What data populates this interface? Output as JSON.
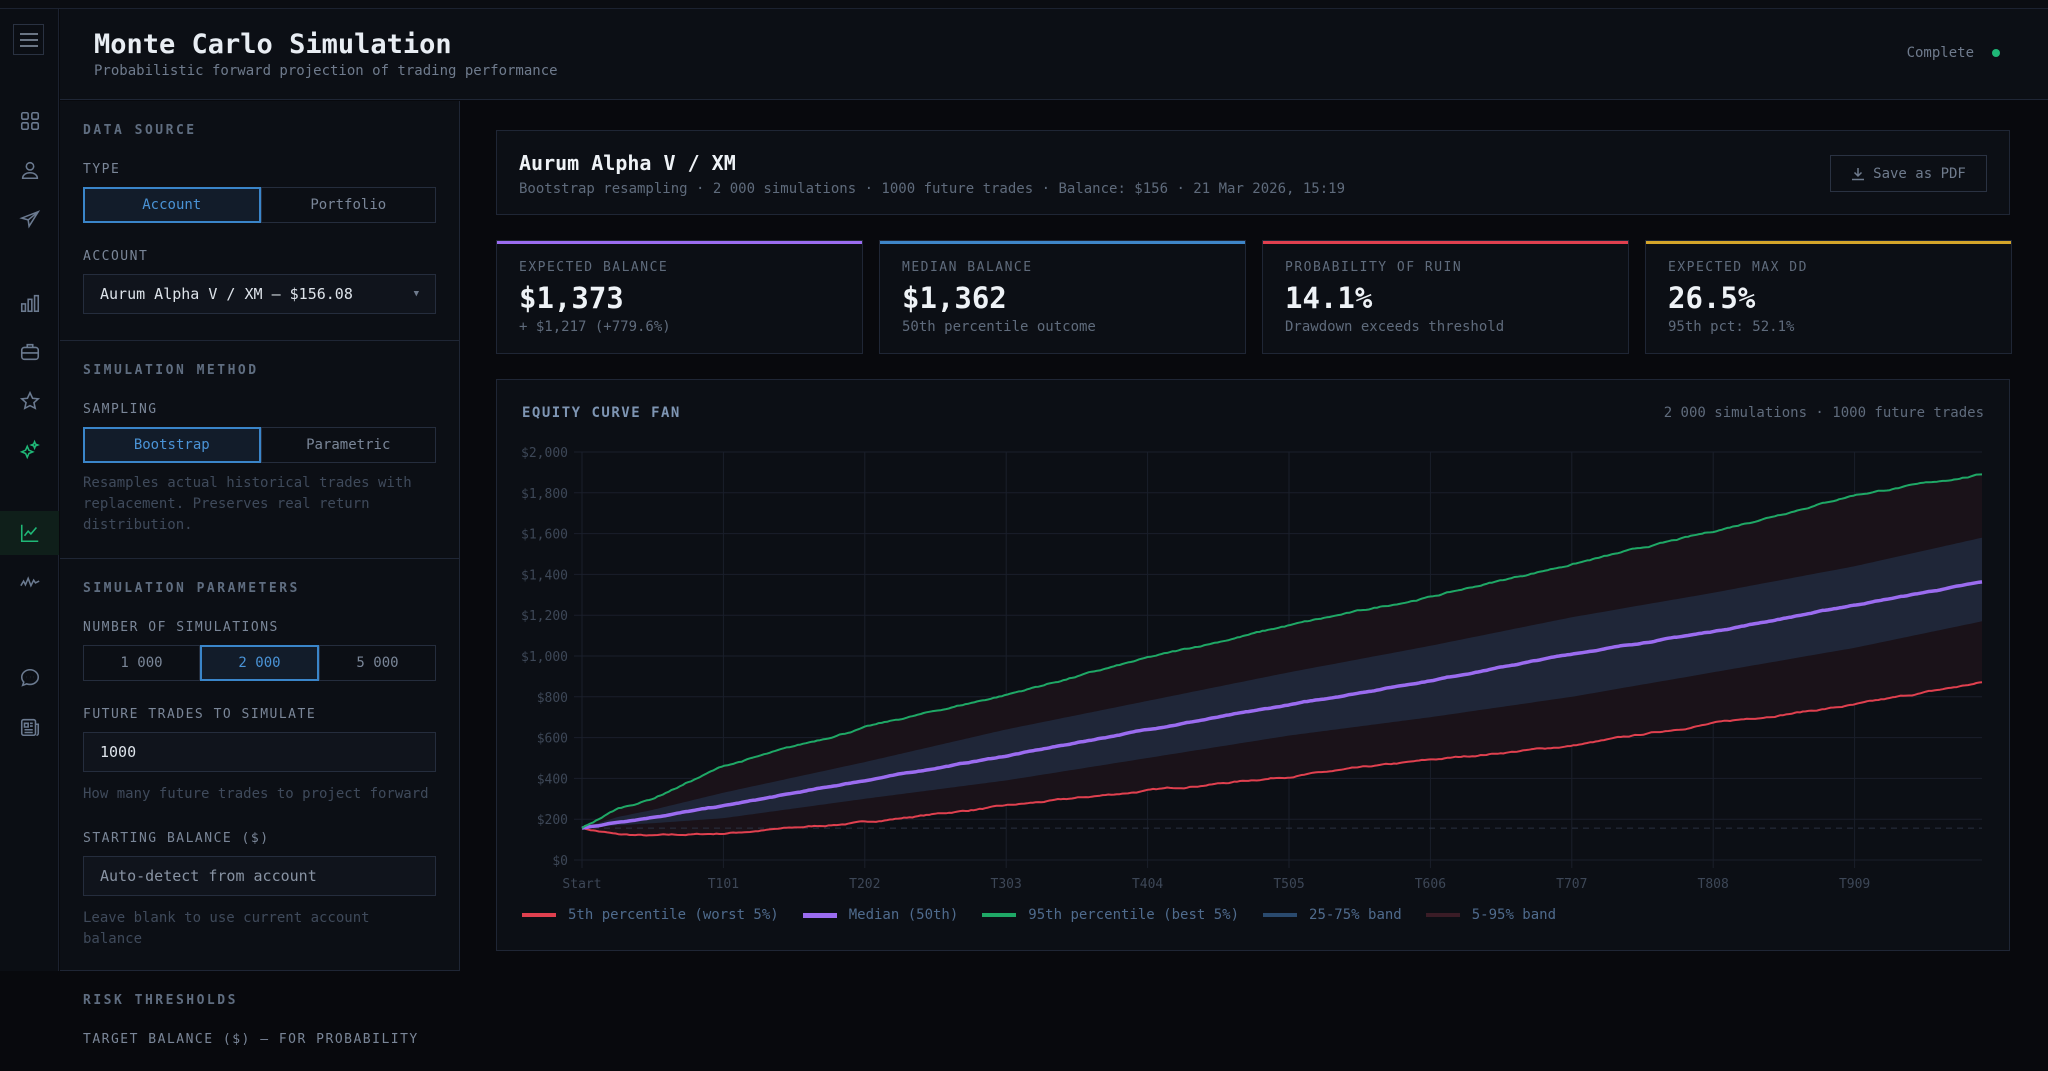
{
  "header": {
    "title": "Monte Carlo Simulation",
    "subtitle": "Probabilistic forward projection of trading performance",
    "status": "Complete"
  },
  "rail": {
    "icons": [
      "dashboard-icon",
      "user-icon",
      "send-icon",
      "bar-chart-icon",
      "briefcase-icon",
      "star-icon",
      "sparkles-icon",
      "line-chart-icon",
      "activity-icon",
      "chat-icon",
      "newspaper-icon"
    ]
  },
  "panel": {
    "data_source": {
      "heading": "DATA SOURCE",
      "type_label": "TYPE",
      "type_options": [
        "Account",
        "Portfolio"
      ],
      "account_label": "ACCOUNT",
      "account_value": "Aurum Alpha V / XM — $156.08"
    },
    "method": {
      "heading": "SIMULATION METHOD",
      "sampling_label": "SAMPLING",
      "options": [
        "Bootstrap",
        "Parametric"
      ],
      "hint": "Resamples actual historical trades with replacement. Preserves real return distribution."
    },
    "params": {
      "heading": "SIMULATION PARAMETERS",
      "num_label": "NUMBER OF SIMULATIONS",
      "num_options": [
        "1 000",
        "2 000",
        "5 000"
      ],
      "trades_label": "FUTURE TRADES TO SIMULATE",
      "trades_value": "1000",
      "trades_hint": "How many future trades to project forward",
      "balance_label": "STARTING BALANCE ($)",
      "balance_placeholder": "Auto-detect from account",
      "balance_hint": "Leave blank to use current account balance"
    },
    "risk": {
      "heading": "RISK THRESHOLDS",
      "target_label": "TARGET BALANCE ($) — FOR PROBABILITY"
    }
  },
  "summary": {
    "title": "Aurum Alpha V / XM",
    "meta": "Bootstrap resampling · 2 000 simulations · 1000 future trades · Balance: $156 · 21 Mar 2026, 15:19",
    "pdf_label": "Save as PDF"
  },
  "stats": [
    {
      "label": "EXPECTED BALANCE",
      "value": "$1,373",
      "sub": "+ $1,217 (+779.6%)",
      "color": "#9b6cf0"
    },
    {
      "label": "MEDIAN BALANCE",
      "value": "$1,362",
      "sub": "50th percentile outcome",
      "color": "#3f86c8"
    },
    {
      "label": "PROBABILITY OF RUIN",
      "value": "14.1%",
      "sub": "Drawdown exceeds threshold",
      "color": "#e0404f"
    },
    {
      "label": "EXPECTED MAX DD",
      "value": "26.5%",
      "sub": "95th pct: 52.1%",
      "color": "#d4a52a"
    }
  ],
  "chart_data": {
    "type": "line",
    "title": "EQUITY CURVE FAN",
    "subtitle": "2 000 simulations · 1000 future trades",
    "xlabel": "",
    "ylabel": "",
    "ylim": [
      0,
      2000
    ],
    "xlim": [
      0,
      1000
    ],
    "yticks": [
      0,
      200,
      400,
      600,
      800,
      1000,
      1200,
      1400,
      1600,
      1800,
      2000
    ],
    "ytick_labels": [
      "$0",
      "$200",
      "$400",
      "$600",
      "$800",
      "$1,000",
      "$1,200",
      "$1,400",
      "$1,600",
      "$1,800",
      "$2,000"
    ],
    "xticks": [
      0,
      101,
      202,
      303,
      404,
      505,
      606,
      707,
      808,
      909
    ],
    "xtick_labels": [
      "Start",
      "T101",
      "T202",
      "T303",
      "T404",
      "T505",
      "T606",
      "T707",
      "T808",
      "T909"
    ],
    "x": [
      0,
      25,
      50,
      101,
      202,
      303,
      404,
      505,
      606,
      707,
      808,
      909,
      1000
    ],
    "starting_balance": 156,
    "series": [
      {
        "name": "5th percentile (worst 5%)",
        "color": "#e0404f",
        "values": [
          156,
          125,
          118,
          130,
          185,
          265,
          340,
          410,
          490,
          560,
          670,
          760,
          870
        ]
      },
      {
        "name": "Median (50th)",
        "color": "#9b6cf0",
        "values": [
          156,
          185,
          210,
          265,
          390,
          510,
          640,
          760,
          880,
          1010,
          1120,
          1250,
          1362
        ]
      },
      {
        "name": "95th percentile (best 5%)",
        "color": "#1fa866",
        "values": [
          156,
          250,
          300,
          460,
          650,
          810,
          990,
          1150,
          1290,
          1450,
          1610,
          1790,
          1890
        ]
      }
    ],
    "bands": [
      {
        "name": "25-75% band",
        "color": "#2a4a6e",
        "lower": [
          156,
          170,
          180,
          205,
          300,
          390,
          500,
          610,
          700,
          800,
          920,
          1040,
          1170
        ],
        "upper": [
          156,
          210,
          245,
          330,
          480,
          640,
          780,
          920,
          1050,
          1190,
          1310,
          1440,
          1580
        ]
      },
      {
        "name": "5-95% band",
        "color": "#3a1c26",
        "lower": [
          156,
          125,
          118,
          130,
          185,
          265,
          340,
          410,
          490,
          560,
          670,
          760,
          870
        ],
        "upper": [
          156,
          250,
          300,
          460,
          650,
          810,
          990,
          1150,
          1290,
          1450,
          1610,
          1790,
          1890
        ]
      }
    ],
    "grid": true,
    "legend_position": "bottom-left"
  }
}
